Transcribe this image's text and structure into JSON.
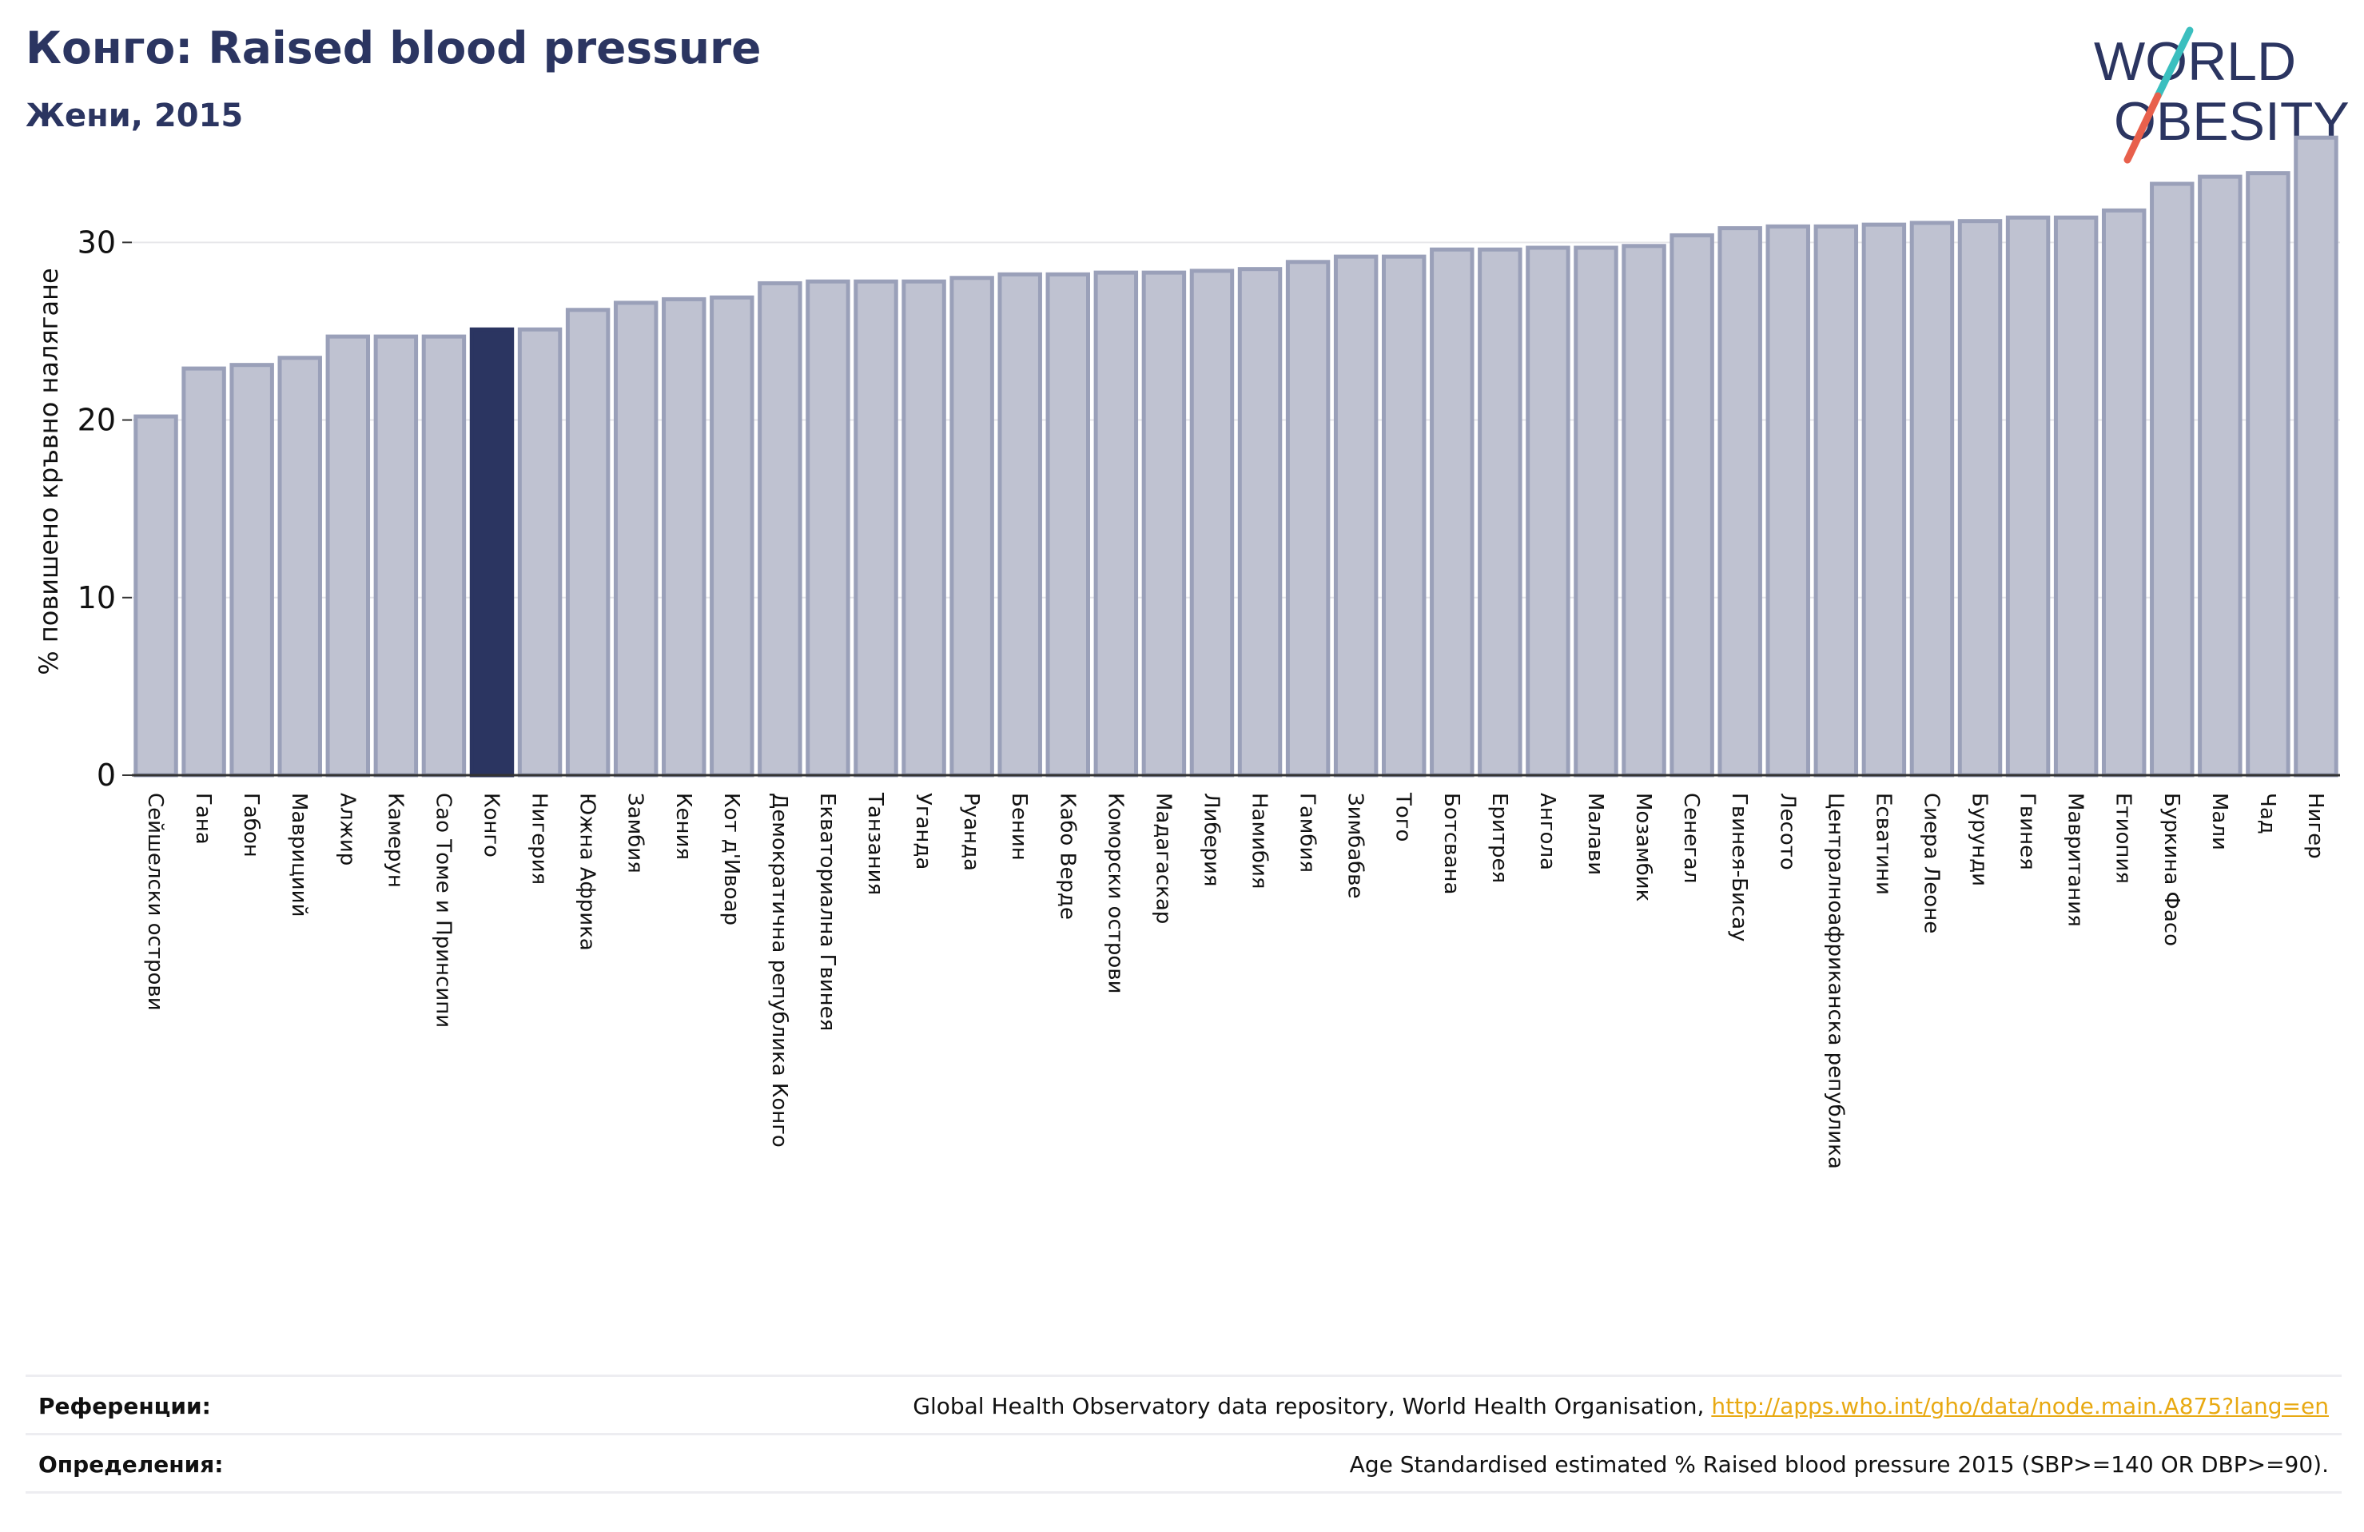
{
  "header": {
    "title": "Конго: Raised blood pressure",
    "subtitle": "Жени, 2015"
  },
  "logo": {
    "line1": "WORLD",
    "line2": "OBESITY",
    "text_color": "#2b3561",
    "slash_top_color": "#3bbfbf",
    "slash_bottom_color": "#e8604c"
  },
  "chart_data": {
    "type": "bar",
    "ylabel": "% повишено кръвно налягане",
    "ylim": [
      0,
      36
    ],
    "yticks": [
      0,
      10,
      20,
      30
    ],
    "grid": true,
    "highlight": "Конго",
    "colors": {
      "bar": "#bfc2d1",
      "bar_edge": "#9aa0b9",
      "highlight": "#2b3561"
    },
    "categories": [
      "Сейшелски острови",
      "Гана",
      "Габон",
      "Маврициий",
      "Алжир",
      "Камерун",
      "Сао Томе и Принсипи",
      "Конго",
      "Нигерия",
      "Южна Африка",
      "Замбия",
      "Кения",
      "Кот д'Ивоар",
      "Демократична република Конго",
      "Екваториална Гвинея",
      "Танзания",
      "Уганда",
      "Руанда",
      "Бенин",
      "Кабо Верде",
      "Коморски острови",
      "Мадагаскар",
      "Либерия",
      "Намибия",
      "Гамбия",
      "Зимбабве",
      "Того",
      "Ботсвана",
      "Еритрея",
      "Ангола",
      "Малави",
      "Мозамбик",
      "Сенегал",
      "Гвинея-Бисау",
      "Лесото",
      "Централноафриканска република",
      "Есватини",
      "Сиера Леоне",
      "Бурунди",
      "Гвинея",
      "Мавритания",
      "Етиопия",
      "Буркина Фасо",
      "Мали",
      "Чад",
      "Нигер"
    ],
    "values": [
      20.2,
      22.9,
      23.1,
      23.5,
      24.7,
      24.7,
      24.7,
      25.1,
      25.1,
      26.2,
      26.6,
      26.8,
      26.9,
      27.7,
      27.8,
      27.8,
      27.8,
      28.0,
      28.2,
      28.2,
      28.3,
      28.3,
      28.4,
      28.5,
      28.9,
      29.2,
      29.2,
      29.6,
      29.6,
      29.7,
      29.7,
      29.8,
      30.4,
      30.8,
      30.9,
      30.9,
      31.0,
      31.1,
      31.2,
      31.4,
      31.4,
      31.8,
      33.3,
      33.7,
      33.9,
      35.9
    ]
  },
  "references": {
    "refs_label": "Референции:",
    "refs_text": "Global Health Observatory data repository, World Health Organisation, ",
    "refs_link": "http://apps.who.int/gho/data/node.main.A875?lang=en",
    "defs_label": "Определения:",
    "defs_text": "Age Standardised estimated % Raised blood pressure 2015 (SBP>=140 OR DBP>=90)."
  }
}
